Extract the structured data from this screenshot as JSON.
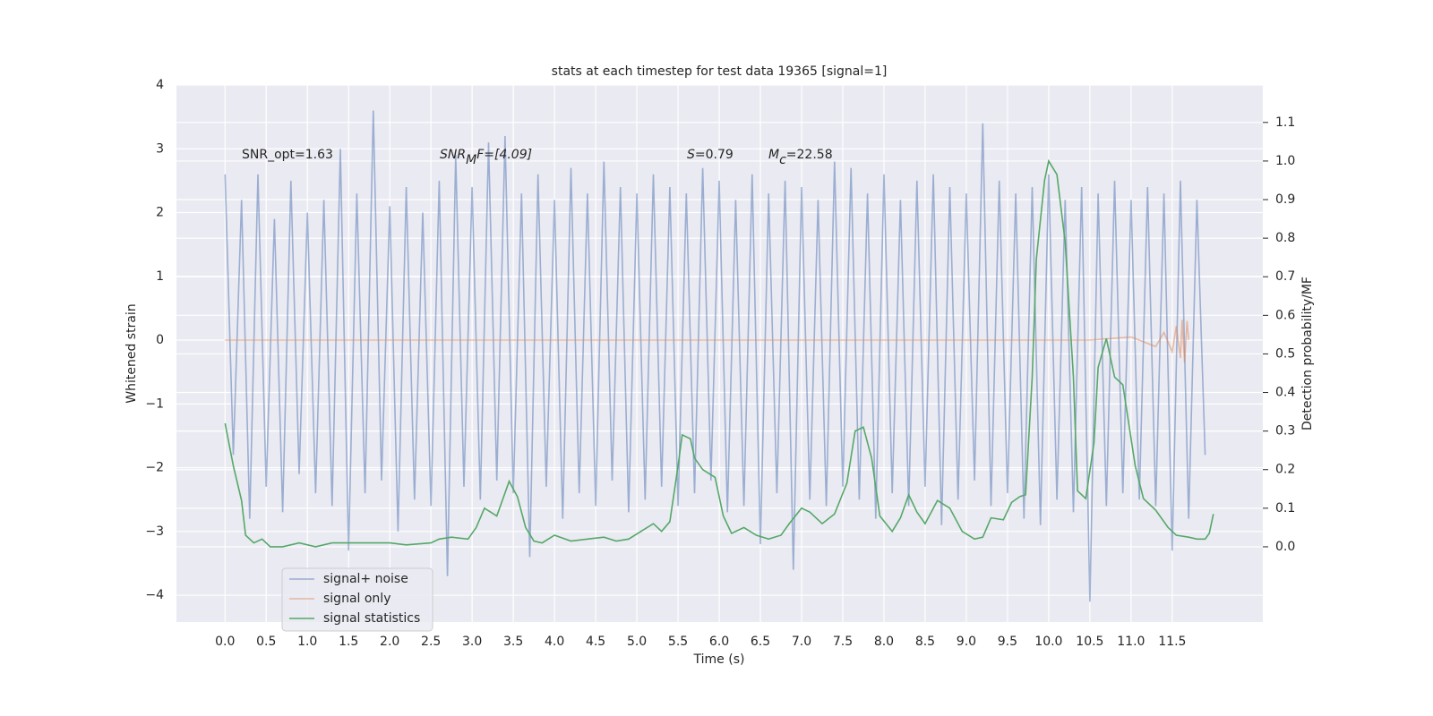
{
  "chart_data": {
    "type": "line",
    "title": "stats at each timestep for test data 19365 [signal=1]",
    "xlabel": "Time (s)",
    "ylabel": "Whitened strain",
    "y2label": "Detection probability/MF",
    "annotations": [
      {
        "text": "SNR_opt=1.63"
      },
      {
        "text": "SNR",
        "sub": "M",
        "after": "F=[4.09]"
      },
      {
        "text": "S",
        "after": "=0.79"
      },
      {
        "text": "M",
        "sub": "c",
        "after": "=22.58"
      }
    ],
    "xlim": [
      -0.59,
      12.6
    ],
    "ylim": [
      -4.42,
      4.0
    ],
    "y2lim": [
      -0.195,
      1.197
    ],
    "xticks": [
      {
        "value": 0,
        "label": "0.0"
      },
      0.5,
      {
        "value": 1,
        "label": "1.0"
      },
      1.5,
      {
        "value": 2,
        "label": "2.0"
      },
      2.5,
      {
        "value": 3,
        "label": "3.0"
      },
      3.5,
      {
        "value": 4,
        "label": "4.0"
      },
      4.5,
      {
        "value": 5,
        "label": "5.0"
      },
      5.5,
      {
        "value": 6,
        "label": "6.0"
      },
      6.5,
      {
        "value": 7,
        "label": "7.0"
      },
      7.5,
      {
        "value": 8,
        "label": "8.0"
      },
      8.5,
      {
        "value": 9,
        "label": "9.0"
      },
      9.5,
      {
        "value": 10,
        "label": "10.0"
      },
      10.5,
      {
        "value": 11,
        "label": "11.0"
      },
      11.5
    ],
    "yticks": [
      {
        "value": -4,
        "label": "−4"
      },
      {
        "value": -3,
        "label": "−3"
      },
      {
        "value": -2,
        "label": "−2"
      },
      {
        "value": -1,
        "label": "−1"
      },
      0,
      1,
      2,
      3,
      4
    ],
    "y2ticks": [
      {
        "value": 0,
        "label": "0.0"
      },
      0.1,
      0.2,
      0.3,
      0.4,
      0.5,
      0.6,
      0.7,
      0.8,
      0.9,
      {
        "value": 1,
        "label": "1.0"
      },
      1.1
    ],
    "grid": true,
    "legend": "lower left",
    "series": [
      {
        "name": "signal+ noise",
        "color": "#4c72b0",
        "alpha": 0.5,
        "x": [
          0.0,
          0.1,
          0.2,
          0.3,
          0.4,
          0.5,
          0.6,
          0.7,
          0.8,
          0.9,
          1.0,
          1.1,
          1.2,
          1.3,
          1.4,
          1.5,
          1.6,
          1.7,
          1.8,
          1.9,
          2.0,
          2.1,
          2.2,
          2.3,
          2.4,
          2.5,
          2.6,
          2.7,
          2.8,
          2.9,
          3.0,
          3.1,
          3.2,
          3.3,
          3.4,
          3.5,
          3.6,
          3.7,
          3.8,
          3.9,
          4.0,
          4.1,
          4.2,
          4.3,
          4.4,
          4.5,
          4.6,
          4.7,
          4.8,
          4.9,
          5.0,
          5.1,
          5.2,
          5.3,
          5.4,
          5.5,
          5.6,
          5.7,
          5.8,
          5.9,
          6.0,
          6.1,
          6.2,
          6.3,
          6.4,
          6.5,
          6.6,
          6.7,
          6.8,
          6.9,
          7.0,
          7.1,
          7.2,
          7.3,
          7.4,
          7.5,
          7.6,
          7.7,
          7.8,
          7.9,
          8.0,
          8.1,
          8.2,
          8.3,
          8.4,
          8.5,
          8.6,
          8.7,
          8.8,
          8.9,
          9.0,
          9.1,
          9.2,
          9.3,
          9.4,
          9.5,
          9.6,
          9.7,
          9.8,
          9.9,
          10.0,
          10.1,
          10.2,
          10.3,
          10.4,
          10.5,
          10.6,
          10.7,
          10.8,
          10.9,
          11.0,
          11.1,
          11.2,
          11.3,
          11.4,
          11.5,
          11.6,
          11.7,
          11.8,
          11.9
        ],
        "values": [
          2.6,
          -1.8,
          2.2,
          -2.8,
          2.6,
          -2.3,
          1.9,
          -2.7,
          2.5,
          -2.1,
          2.0,
          -2.4,
          2.2,
          -2.6,
          3.0,
          -3.3,
          2.3,
          -2.4,
          3.6,
          -2.2,
          2.1,
          -3.0,
          2.4,
          -2.5,
          2.0,
          -2.6,
          2.5,
          -3.7,
          2.9,
          -2.3,
          2.4,
          -2.5,
          3.1,
          -2.2,
          3.2,
          -2.4,
          2.3,
          -3.4,
          2.6,
          -2.3,
          2.2,
          -2.8,
          2.7,
          -2.4,
          2.3,
          -2.6,
          2.8,
          -2.2,
          2.4,
          -2.7,
          2.3,
          -2.5,
          2.6,
          -2.3,
          2.4,
          -2.6,
          2.3,
          -2.4,
          2.7,
          -2.2,
          2.5,
          -2.7,
          2.2,
          -2.6,
          2.6,
          -3.2,
          2.3,
          -2.4,
          2.5,
          -3.6,
          2.4,
          -2.5,
          2.2,
          -2.6,
          2.8,
          -2.3,
          2.7,
          -2.5,
          2.3,
          -2.8,
          2.6,
          -2.4,
          2.2,
          -2.6,
          2.5,
          -2.3,
          2.6,
          -2.9,
          2.4,
          -2.5,
          2.3,
          -2.2,
          3.4,
          -2.6,
          2.5,
          -2.4,
          2.3,
          -2.8,
          2.4,
          -2.9,
          2.6,
          -2.5,
          2.2,
          -2.7,
          2.4,
          -4.1,
          2.3,
          -2.6,
          2.5,
          -2.4,
          2.2,
          -2.5,
          2.4,
          -2.6,
          2.3,
          -3.3,
          2.5,
          -2.8,
          2.2,
          -1.8
        ]
      },
      {
        "name": "signal only",
        "color": "#dd8452",
        "alpha": 0.5,
        "x": [
          0.0,
          10.5,
          11.0,
          11.3,
          11.4,
          11.5,
          11.55,
          11.6,
          11.62,
          11.65,
          11.68,
          11.7
        ],
        "values": [
          0,
          0,
          0.05,
          -0.1,
          0.12,
          -0.18,
          0.22,
          -0.28,
          0.32,
          -0.35,
          0.3,
          0
        ]
      },
      {
        "name": "signal statistics",
        "color": "#55a868",
        "axis": "y2",
        "x": [
          0.0,
          0.1,
          0.2,
          0.25,
          0.35,
          0.45,
          0.55,
          0.7,
          0.9,
          1.1,
          1.3,
          1.5,
          1.6,
          1.8,
          2.0,
          2.2,
          2.5,
          2.6,
          2.75,
          2.95,
          3.05,
          3.15,
          3.3,
          3.45,
          3.55,
          3.65,
          3.75,
          3.85,
          4.0,
          4.2,
          4.4,
          4.6,
          4.75,
          4.9,
          5.05,
          5.2,
          5.3,
          5.4,
          5.5,
          5.55,
          5.65,
          5.7,
          5.8,
          5.95,
          6.05,
          6.15,
          6.3,
          6.45,
          6.6,
          6.75,
          6.85,
          7.0,
          7.1,
          7.25,
          7.4,
          7.55,
          7.65,
          7.75,
          7.85,
          7.95,
          8.1,
          8.2,
          8.3,
          8.4,
          8.5,
          8.65,
          8.8,
          8.95,
          9.1,
          9.2,
          9.3,
          9.45,
          9.55,
          9.65,
          9.72,
          9.8,
          9.85,
          9.95,
          10.0,
          10.1,
          10.2,
          10.3,
          10.35,
          10.45,
          10.55,
          10.6,
          10.7,
          10.8,
          10.9,
          10.95,
          11.05,
          11.15,
          11.3,
          11.45,
          11.55,
          11.7,
          11.8,
          11.9,
          11.95,
          12.0
        ],
        "values": [
          0.32,
          0.21,
          0.12,
          0.03,
          0.01,
          0.02,
          0.0,
          0.0,
          0.01,
          0.0,
          0.01,
          0.01,
          0.01,
          0.01,
          0.01,
          0.005,
          0.01,
          0.02,
          0.025,
          0.02,
          0.05,
          0.1,
          0.08,
          0.17,
          0.13,
          0.05,
          0.015,
          0.01,
          0.03,
          0.015,
          0.02,
          0.025,
          0.015,
          0.02,
          0.04,
          0.06,
          0.04,
          0.065,
          0.21,
          0.29,
          0.28,
          0.23,
          0.2,
          0.18,
          0.08,
          0.035,
          0.05,
          0.03,
          0.02,
          0.03,
          0.06,
          0.1,
          0.09,
          0.06,
          0.085,
          0.165,
          0.3,
          0.31,
          0.23,
          0.08,
          0.04,
          0.075,
          0.135,
          0.09,
          0.06,
          0.12,
          0.1,
          0.04,
          0.02,
          0.025,
          0.075,
          0.07,
          0.115,
          0.13,
          0.135,
          0.44,
          0.745,
          0.95,
          1.0,
          0.965,
          0.79,
          0.44,
          0.145,
          0.125,
          0.27,
          0.465,
          0.54,
          0.44,
          0.42,
          0.35,
          0.21,
          0.125,
          0.095,
          0.05,
          0.03,
          0.025,
          0.02,
          0.02,
          0.035,
          0.085
        ]
      }
    ]
  }
}
